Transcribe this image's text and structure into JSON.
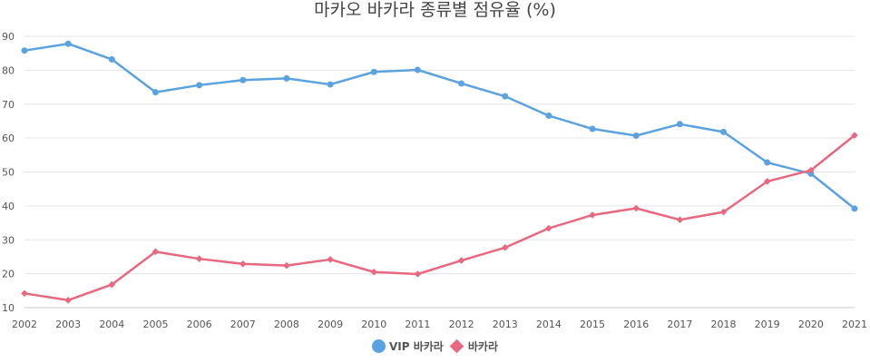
{
  "chart_data": {
    "type": "line",
    "title": "마카오 바카라 종류별 점유율 (%)",
    "xlabel": "",
    "ylabel": "",
    "categories": [
      "2002",
      "2003",
      "2004",
      "2005",
      "2006",
      "2007",
      "2008",
      "2009",
      "2010",
      "2011",
      "2012",
      "2013",
      "2014",
      "2015",
      "2016",
      "2017",
      "2018",
      "2019",
      "2020",
      "2021"
    ],
    "ylim": [
      10,
      90
    ],
    "yticks": [
      10,
      20,
      30,
      40,
      50,
      60,
      70,
      80,
      90
    ],
    "grid": true,
    "legend_position": "bottom",
    "series": [
      {
        "name": "VIP 바카라",
        "marker": "circle",
        "color": "#5ba2e1",
        "values": [
          85.8,
          87.8,
          83.2,
          73.5,
          75.6,
          77.1,
          77.6,
          75.8,
          79.5,
          80.1,
          76.1,
          72.3,
          66.6,
          62.7,
          60.7,
          64.1,
          61.8,
          52.8,
          49.5,
          39.2
        ]
      },
      {
        "name": "바카라",
        "marker": "diamond",
        "color": "#e8687f",
        "values": [
          14.2,
          12.2,
          16.8,
          26.5,
          24.4,
          22.9,
          22.4,
          24.2,
          20.5,
          19.9,
          23.9,
          27.7,
          33.4,
          37.3,
          39.3,
          35.9,
          38.2,
          47.2,
          50.5,
          60.8
        ]
      }
    ]
  }
}
